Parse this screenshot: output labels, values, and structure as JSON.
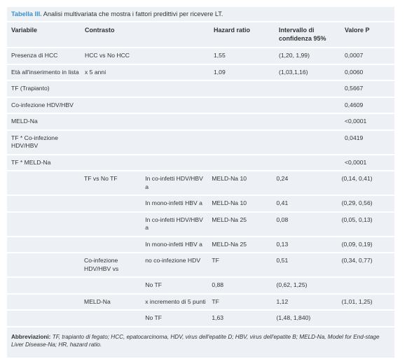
{
  "title": {
    "label": "Tabella III.",
    "text": "Analisi multivariata che mostra i fattori predittivi per ricevere LT."
  },
  "table": {
    "header": [
      "Variabile",
      "Contrasto",
      "Hazard ratio",
      "Intervallo di confidenza 95%",
      "Valore P"
    ],
    "rows": [
      [
        "Presenza di HCC",
        "HCC vs No HCC",
        "1,55",
        "(1,20, 1,99)",
        "0,0007"
      ],
      [
        "Età all'inserimento in lista",
        "x 5 anni",
        "1,09",
        "(1,03,1,16)",
        "0,0060"
      ],
      [
        "TF (Trapianto)",
        null,
        null,
        null,
        "0,5667"
      ],
      [
        "Co-infezione HDV/HBV",
        null,
        null,
        null,
        "0,4609"
      ],
      [
        "MELD-Na",
        null,
        null,
        null,
        "<0,0001"
      ],
      [
        "TF * Co-infezione HDV/HBV",
        null,
        null,
        null,
        "0,0419"
      ],
      [
        "TF * MELD-Na",
        null,
        null,
        null,
        "<0,0001"
      ]
    ],
    "subrows": [
      [
        "TF vs No TF",
        "In co-infetti HDV/HBV a",
        "MELD-Na 10",
        "0,24",
        "(0,14, 0,41)"
      ],
      [
        null,
        "In mono-infetti HBV a",
        "MELD-Na 10",
        "0,41",
        "(0,29, 0,56)"
      ],
      [
        null,
        "In co-infetti HDV/HBV a",
        "MELD-Na 25",
        "0,08",
        "(0,05, 0,13)"
      ],
      [
        null,
        "In mono-infetti HBV a",
        "MELD-Na 25",
        "0,13",
        "(0,09, 0,19)"
      ],
      [
        "Co-infezione HDV/HBV vs",
        "no co-infezione HDV",
        "TF",
        "0,51",
        "(0,34, 0,77)"
      ],
      [
        null,
        "No TF",
        "0,88",
        "(0,62, 1,25)",
        null
      ],
      [
        "MELD-Na",
        "x incremento di 5 punti",
        "TF",
        "1,12",
        "(1,01, 1,25)"
      ],
      [
        null,
        "No TF",
        "1,63",
        "(1,48, 1,840)",
        null
      ]
    ]
  },
  "footer": {
    "label": "Abbreviazioni:",
    "text": "TF, trapianto di fegato; HCC, epatocarcinoma, HDV, virus dell'epatite D; HBV, virus dell'epatite B; MELD-Na, Model for End-stage Liver Disease-Na; HR, hazard ratio."
  }
}
